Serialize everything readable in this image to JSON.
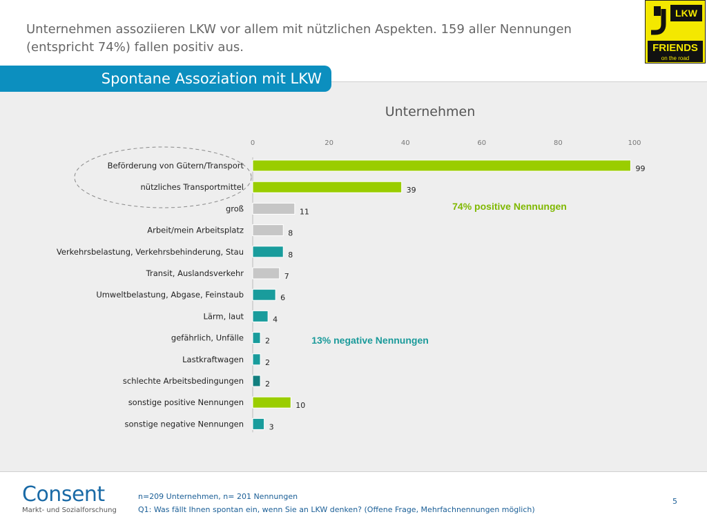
{
  "headline": "Unternehmen assoziieren LKW vor allem mit nützlichen Aspekten. 159 aller Nennungen (entspricht 74%) fallen positiv aus.",
  "logo": {
    "top": "LKW",
    "main": "FRIENDS",
    "sub": "on the road"
  },
  "banner": "Spontane Assoziation mit LKW",
  "chart_data": {
    "type": "bar",
    "orientation": "horizontal",
    "title": "Unternehmen",
    "xlim": [
      0,
      100
    ],
    "ticks": [
      0,
      20,
      40,
      60,
      80,
      100
    ],
    "grid": false,
    "categories": [
      "Beförderung von Gütern/Transport",
      "nützliches Transportmittel",
      "groß",
      "Arbeit/mein Arbeitsplatz",
      "Verkehrsbelastung, Verkehrsbehinderung, Stau",
      "Transit, Auslandsverkehr",
      "Umweltbelastung, Abgase, Feinstaub",
      "Lärm, laut",
      "gefährlich, Unfälle",
      "Lastkraftwagen",
      "schlechte Arbeitsbedingungen",
      "sonstige positive Nennungen",
      "sonstige negative Nennungen"
    ],
    "values": [
      99,
      39,
      11,
      8,
      8,
      7,
      6,
      4,
      2,
      2,
      2,
      10,
      3
    ],
    "bar_colors": [
      "#9acd00",
      "#9acd00",
      "#c6c6c6",
      "#c6c6c6",
      "#199c9c",
      "#c6c6c6",
      "#199c9c",
      "#199c9c",
      "#199c9c",
      "#199c9c",
      "#127f7f",
      "#9acd00",
      "#199c9c"
    ],
    "annotations": [
      {
        "text": "74% positive Nennungen",
        "color": "#7fb800"
      },
      {
        "text": "13% negative Nennungen",
        "color": "#1a9a9a"
      }
    ]
  },
  "footer": {
    "brand": "Consent",
    "brand_sub": "Markt- und Sozialforschung",
    "note1": "n=209 Unternehmen, n= 201 Nennungen",
    "note2": "Q1: Was fällt Ihnen spontan ein, wenn Sie an LKW denken? (Offene Frage, Mehrfachnennungen möglich)",
    "page": "5"
  }
}
